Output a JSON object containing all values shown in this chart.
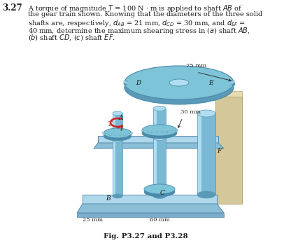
{
  "problem_number": "3.27",
  "bg_color": "#ffffff",
  "text_color": "#1a1a1a",
  "shaft_color": "#7ab8d4",
  "shaft_dark": "#5a9ab8",
  "shaft_light": "#b0ddf0",
  "gear_color": "#7ec4d8",
  "gear_dark": "#4a8aaa",
  "gear_light": "#aadcee",
  "plate_color": "#8bbfd8",
  "plate_light": "#b0d8ec",
  "wall_color": "#d4c89a",
  "wall_light": "#e8dbb0",
  "torque_color": "#cc2222",
  "dim_arrow_color": "#333333",
  "fig_caption": "Fig. P3.27 and P3.28",
  "label_A": "A",
  "label_B": "B",
  "label_C": "C",
  "label_D": "D",
  "label_E": "E",
  "label_F": "F",
  "label_T": "T",
  "dim_75mm": "75 mm",
  "dim_30mm": "30 mm",
  "dim_60mm": "60 mm",
  "dim_25mm": "25 mm",
  "text_fontsize": 7.0,
  "prob_fontsize": 8.5,
  "cap_fontsize": 7.5,
  "label_fontsize": 6.5,
  "dim_fontsize": 6.0
}
